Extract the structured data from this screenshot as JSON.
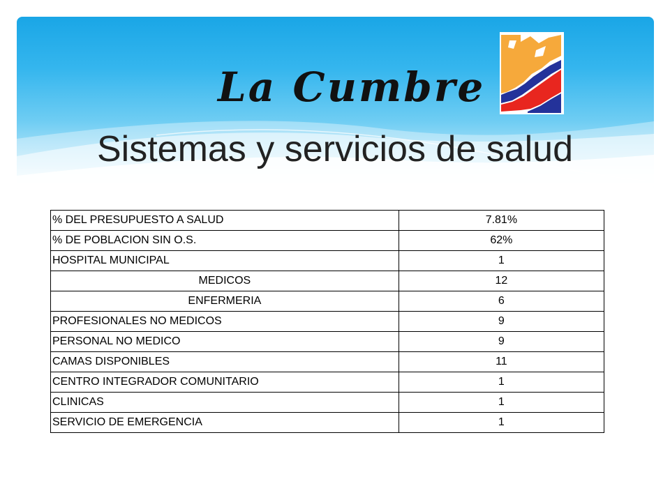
{
  "slide": {
    "title_script": "La Cumbre",
    "subtitle": "Sistemas y servicios de salud",
    "logo_icon": "la-cumbre-logo-icon",
    "colors": {
      "banner_top": "#1aa6e6",
      "banner_bottom": "#bfe9fa",
      "logo_orange": "#f6a93b",
      "logo_red": "#e8261f",
      "logo_blue": "#24329a"
    }
  },
  "table": {
    "rows": [
      {
        "label": "% DEL PRESUPUESTO A SALUD",
        "value": "7.81%"
      },
      {
        "label": "% DE POBLACION SIN O.S.",
        "value": "62%"
      },
      {
        "label": "HOSPITAL MUNICIPAL",
        "value": "1"
      },
      {
        "label": "MEDICOS",
        "value": "12"
      },
      {
        "label": "ENFERMERIA",
        "value": "6"
      },
      {
        "label": "PROFESIONALES NO MEDICOS",
        "value": "9"
      },
      {
        "label": "PERSONAL NO MEDICO",
        "value": "9"
      },
      {
        "label": "CAMAS DISPONIBLES",
        "value": "11"
      },
      {
        "label": "CENTRO INTEGRADOR COMUNITARIO",
        "value": "1"
      },
      {
        "label": "CLINICAS",
        "value": "1"
      },
      {
        "label": "SERVICIO DE EMERGENCIA",
        "value": "1"
      }
    ]
  }
}
